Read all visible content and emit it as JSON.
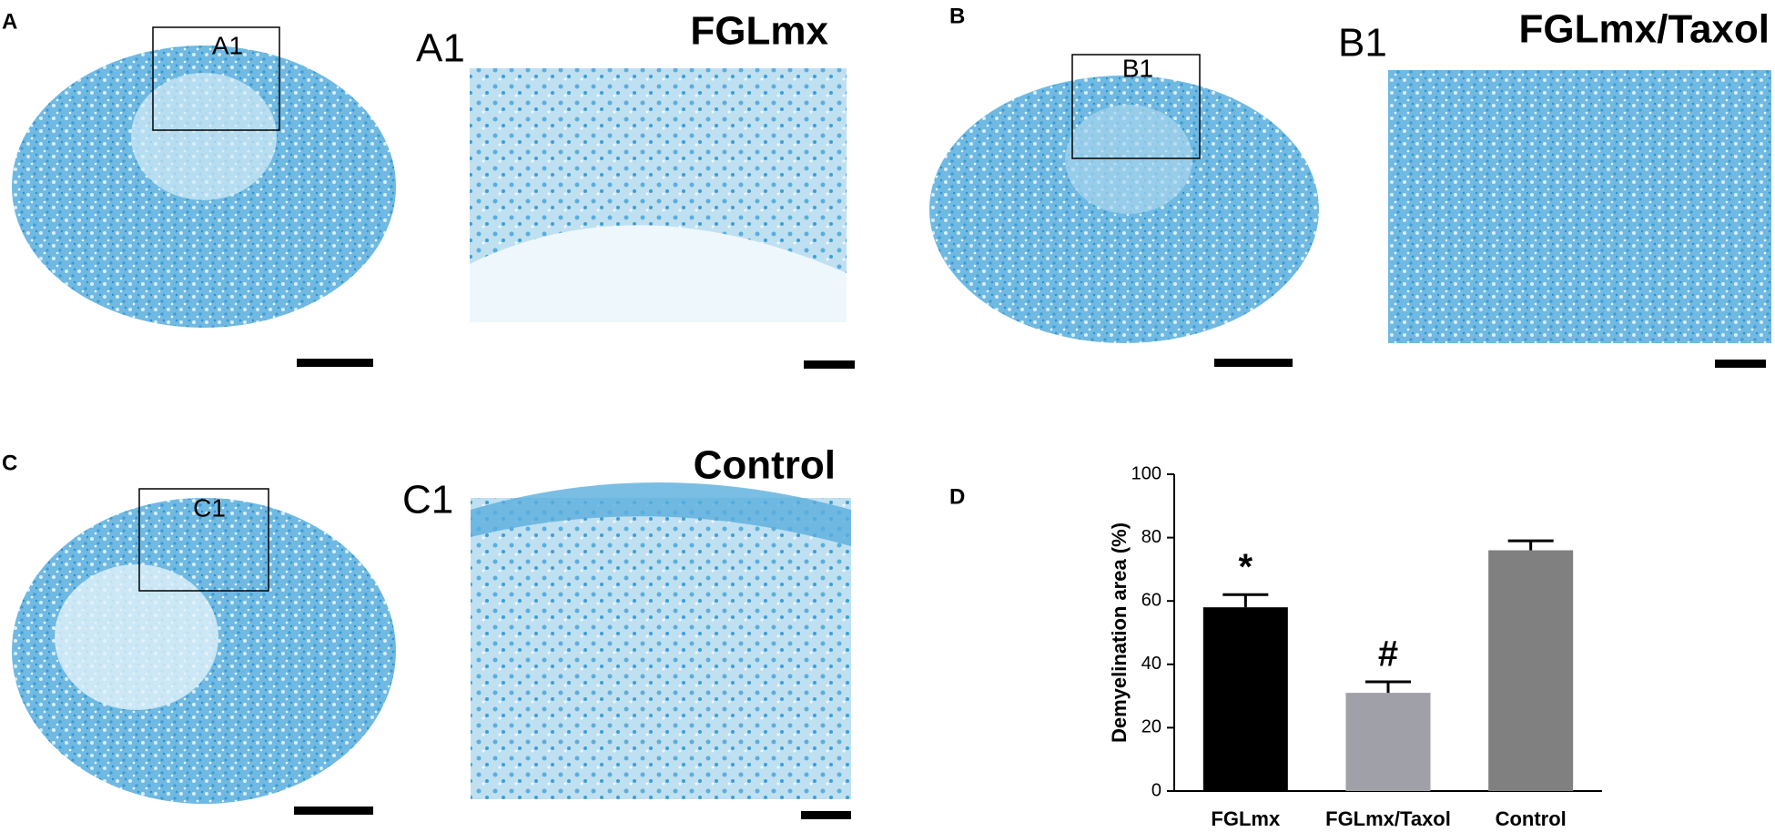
{
  "panels": [
    {
      "label": "A",
      "box": "A1"
    },
    {
      "label": "B",
      "box": "B1"
    },
    {
      "label": "C",
      "box": "C1"
    },
    {
      "label": "D"
    }
  ],
  "insets": [
    {
      "label": "A1",
      "title": "FGLmx"
    },
    {
      "label": "B1",
      "title": "FGLmx/Taxol"
    },
    {
      "label": "C1",
      "title": "Control"
    }
  ],
  "chart_data": {
    "type": "bar",
    "y_label": "Demyelination area (%)",
    "categories": [
      "FGLmx",
      "FGLmx/Taxol",
      "Control"
    ],
    "values": [
      58,
      31,
      76
    ],
    "errors": [
      4,
      3.5,
      3
    ],
    "colors": [
      "#000000",
      "#a0a0a8",
      "#808080"
    ],
    "annotations": [
      "*",
      "#",
      null
    ],
    "ylim": [
      0,
      100
    ],
    "yticks": [
      0,
      20,
      40,
      60,
      80,
      100
    ]
  }
}
